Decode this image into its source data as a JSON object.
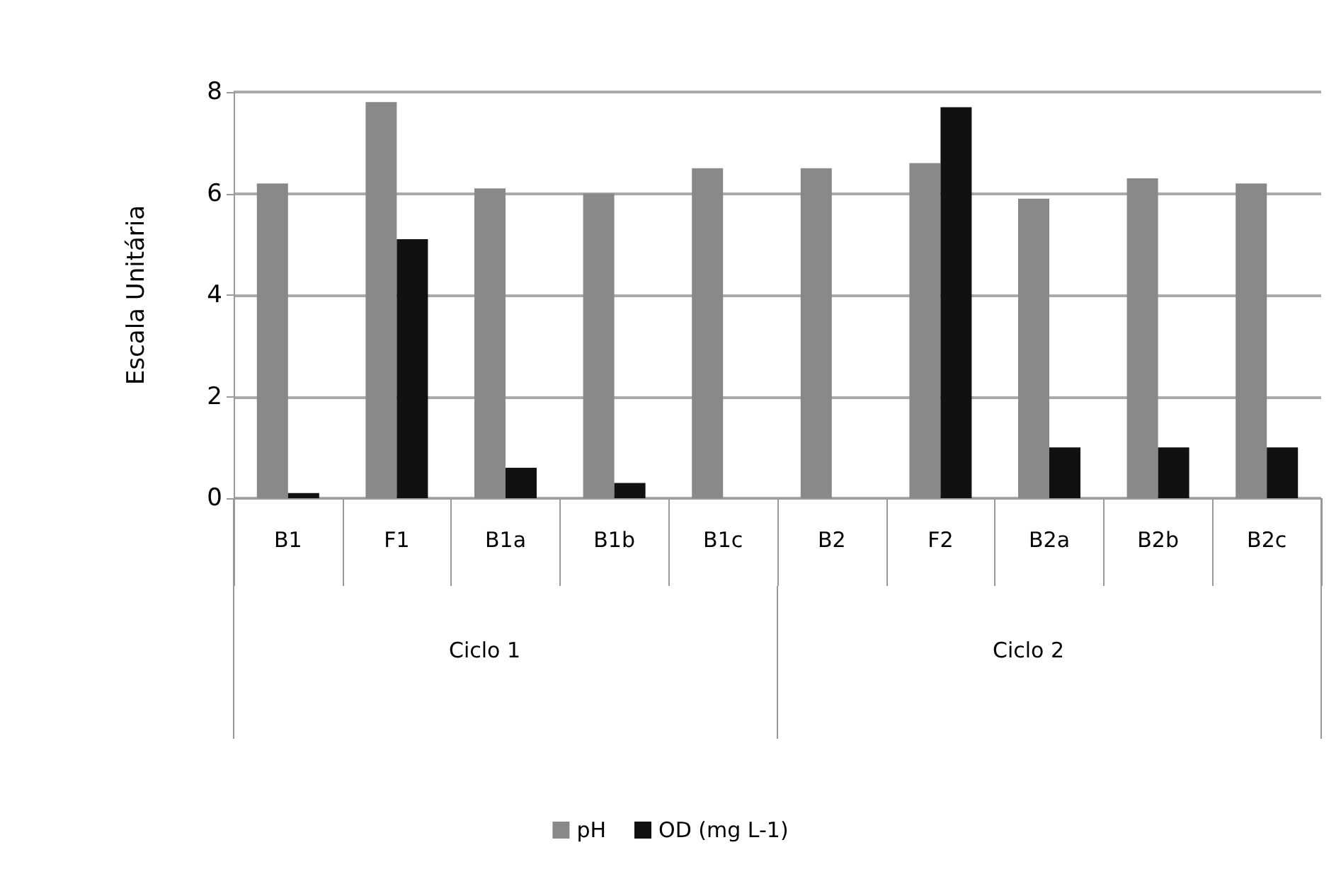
{
  "chart_data": {
    "type": "bar",
    "ylabel": "Escala Unitária",
    "categories": [
      "B1",
      "F1",
      "B1a",
      "B1b",
      "B1c",
      "B2",
      "F2",
      "B2a",
      "B2b",
      "B2c"
    ],
    "series": [
      {
        "name": "pH",
        "color": "#898989",
        "values": [
          6.2,
          7.8,
          6.1,
          6.0,
          6.5,
          6.5,
          6.6,
          5.9,
          6.3,
          6.2
        ]
      },
      {
        "name": "OD (mg L-1)",
        "color": "#111111",
        "values": [
          0.1,
          5.1,
          0.6,
          0.3,
          0,
          0,
          7.7,
          1.0,
          1.0,
          1.0
        ]
      }
    ],
    "annotations": [
      "Ciclo 1",
      "Ciclo 2"
    ],
    "ylim": [
      0,
      8
    ],
    "yticks": [
      0,
      2,
      4,
      6,
      8
    ],
    "grid": "y",
    "legend": "bottom"
  }
}
